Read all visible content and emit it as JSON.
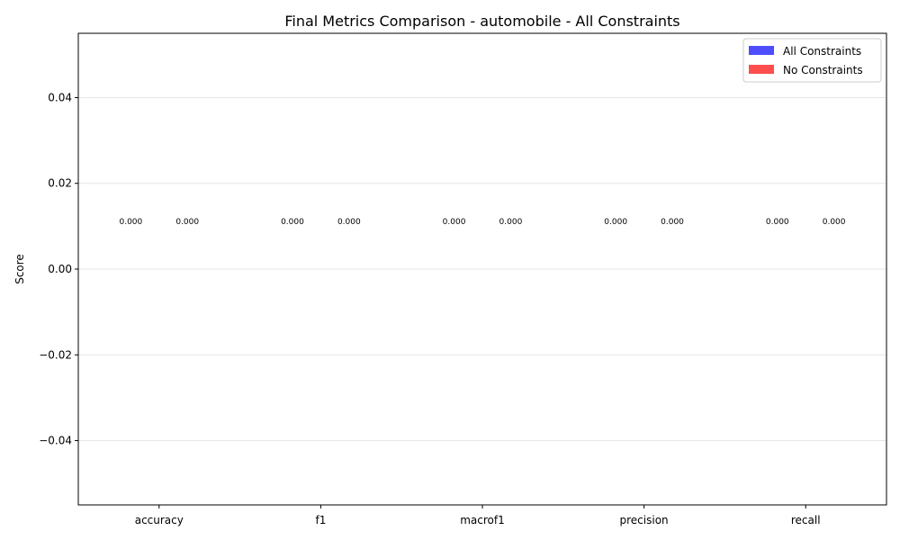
{
  "chart_data": {
    "type": "bar",
    "title": "Final Metrics Comparison - automobile - All Constraints",
    "xlabel": "",
    "ylabel": "Score",
    "categories": [
      "accuracy",
      "f1",
      "macrof1",
      "precision",
      "recall"
    ],
    "ylim": [
      -0.055,
      0.055
    ],
    "yticks": [
      -0.04,
      -0.02,
      0.0,
      0.02,
      0.04
    ],
    "ytick_labels": [
      "−0.04",
      "−0.02",
      "0.00",
      "0.02",
      "0.04"
    ],
    "grid": "horizontal",
    "legend_position": "top-right",
    "series": [
      {
        "name": "All Constraints",
        "color": "#4444ff",
        "values": [
          0,
          0,
          0,
          0,
          0
        ],
        "labels": [
          "0.000",
          "0.000",
          "0.000",
          "0.000",
          "0.000"
        ]
      },
      {
        "name": "No Constraints",
        "color": "#ff4444",
        "values": [
          0,
          0,
          0,
          0,
          0
        ],
        "labels": [
          "0.000",
          "0.000",
          "0.000",
          "0.000",
          "0.000"
        ]
      }
    ]
  }
}
